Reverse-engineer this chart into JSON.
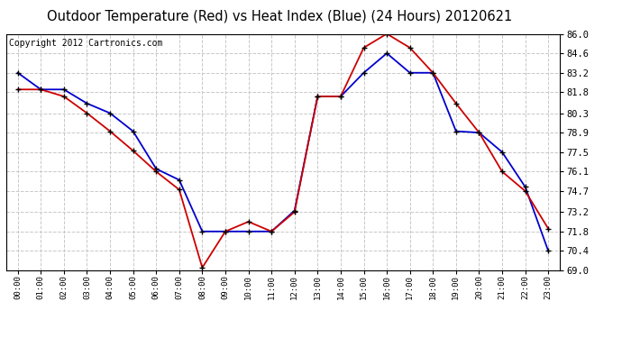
{
  "title": "Outdoor Temperature (Red) vs Heat Index (Blue) (24 Hours) 20120621",
  "copyright": "Copyright 2012 Cartronics.com",
  "x_labels": [
    "00:00",
    "01:00",
    "02:00",
    "03:00",
    "04:00",
    "05:00",
    "06:00",
    "07:00",
    "08:00",
    "09:00",
    "10:00",
    "11:00",
    "12:00",
    "13:00",
    "14:00",
    "15:00",
    "16:00",
    "17:00",
    "18:00",
    "19:00",
    "20:00",
    "21:00",
    "22:00",
    "23:00"
  ],
  "red_temp": [
    82.0,
    82.0,
    81.5,
    80.3,
    79.0,
    77.6,
    76.1,
    74.8,
    69.2,
    71.8,
    72.5,
    71.8,
    73.2,
    81.5,
    81.5,
    85.0,
    86.0,
    85.0,
    83.2,
    81.0,
    78.9,
    76.1,
    74.7,
    72.0
  ],
  "blue_temp": [
    83.2,
    82.0,
    82.0,
    81.0,
    80.3,
    79.0,
    76.3,
    75.5,
    71.8,
    71.8,
    71.8,
    71.8,
    73.3,
    81.5,
    81.5,
    83.2,
    84.6,
    83.2,
    83.2,
    79.0,
    78.9,
    77.5,
    75.0,
    70.4
  ],
  "y_ticks": [
    69.0,
    70.4,
    71.8,
    73.2,
    74.7,
    76.1,
    77.5,
    78.9,
    80.3,
    81.8,
    83.2,
    84.6,
    86.0
  ],
  "ylim": [
    69.0,
    86.0
  ],
  "bg_color": "#ffffff",
  "grid_color": "#c8c8c8",
  "red_color": "#cc0000",
  "blue_color": "#0000cc",
  "title_fontsize": 10.5,
  "copyright_fontsize": 7
}
